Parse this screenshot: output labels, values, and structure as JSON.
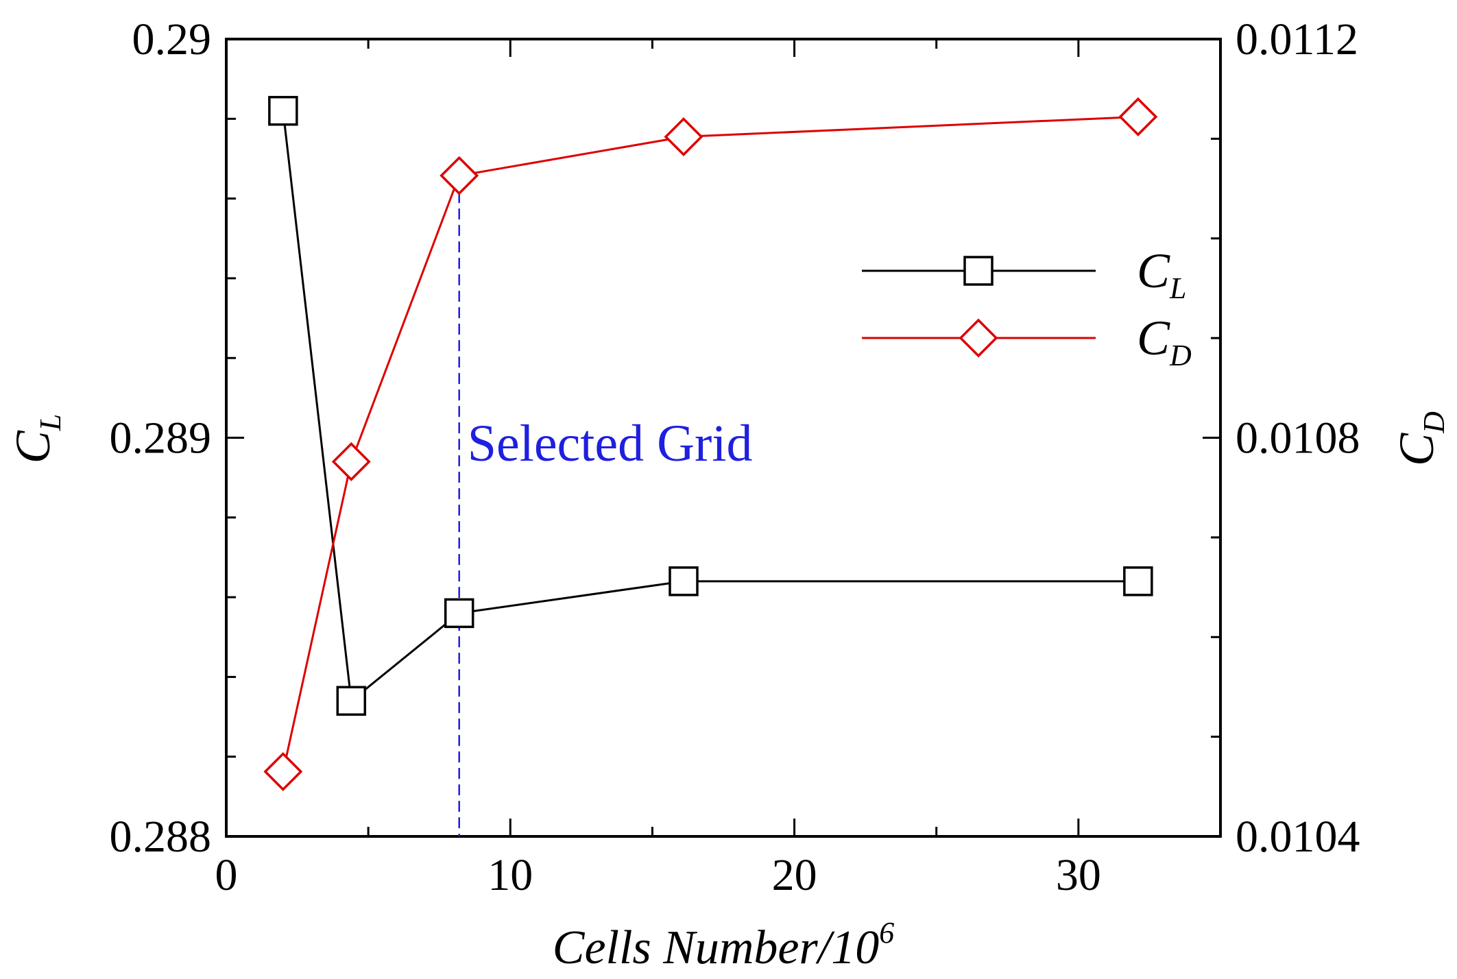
{
  "chart_data": {
    "type": "line",
    "title": "",
    "x": [
      2,
      4.4,
      8.2,
      16.1,
      32.1
    ],
    "xlabel": "Cells Number/10",
    "xlabel_superscript": "6",
    "xlim": [
      0,
      35
    ],
    "xticks": [
      0,
      10,
      20,
      30
    ],
    "xtick_labels": [
      "0",
      "10",
      "20",
      "30"
    ],
    "ylabel_left": "C",
    "ylabel_left_sub": "L",
    "ylabel_right": "C",
    "ylabel_right_sub": "D",
    "ylim_left": [
      0.288,
      0.29
    ],
    "ylim_right": [
      0.0104,
      0.0112
    ],
    "yticks_left": [
      0.288,
      0.289,
      0.29
    ],
    "ytick_labels_left": [
      "0.288",
      "0.289",
      "0.29"
    ],
    "yticks_right": [
      0.0104,
      0.0108,
      0.0112
    ],
    "ytick_labels_right": [
      "0.0104",
      "0.0108",
      "0.0112"
    ],
    "series": [
      {
        "name": "C",
        "name_sub": "L",
        "axis": "left",
        "color": "#000000",
        "marker": "square",
        "values": [
          0.28982,
          0.28834,
          0.28856,
          0.28864,
          0.28864
        ]
      },
      {
        "name": "C",
        "name_sub": "D",
        "axis": "right",
        "color": "#dd0000",
        "marker": "diamond",
        "values": [
          0.010465,
          0.010776,
          0.011063,
          0.011102,
          0.011122
        ]
      }
    ],
    "annotation": {
      "text": "Selected Grid",
      "x": 8.2,
      "color": "#1f1fe0"
    },
    "legend_position": "upper-right",
    "grid": false
  }
}
